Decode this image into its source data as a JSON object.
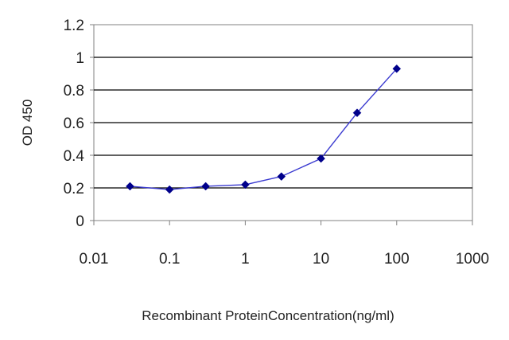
{
  "chart_data": {
    "type": "line",
    "xlabel": "Recombinant ProteinConcentration(ng/ml)",
    "ylabel": "OD 450",
    "x_scale": "log",
    "xlim": [
      0.01,
      1000
    ],
    "ylim": [
      0,
      1.2
    ],
    "x_ticks": [
      "0.01",
      "0.1",
      "1",
      "10",
      "100",
      "1000"
    ],
    "y_ticks": [
      "0",
      "0.2",
      "0.4",
      "0.6",
      "0.8",
      "1",
      "1.2"
    ],
    "grid": "horizontal",
    "legend": "none",
    "series": [
      {
        "x": [
          0.03,
          0.1,
          0.3,
          1,
          3,
          10,
          30,
          100
        ],
        "y": [
          0.21,
          0.19,
          0.21,
          0.22,
          0.27,
          0.38,
          0.66,
          0.93
        ],
        "color": "#00008b"
      }
    ]
  }
}
